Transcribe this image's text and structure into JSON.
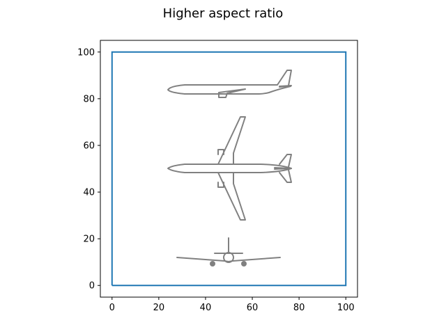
{
  "chart_data": {
    "type": "line",
    "title": "Higher aspect ratio",
    "xlabel": "",
    "ylabel": "",
    "xlim": [
      -5,
      105
    ],
    "ylim": [
      -5,
      105
    ],
    "x_ticks": [
      0,
      20,
      40,
      60,
      80,
      100
    ],
    "y_ticks": [
      0,
      20,
      40,
      60,
      80,
      100
    ],
    "x_tick_labels": [
      "0",
      "20",
      "40",
      "60",
      "80",
      "100"
    ],
    "y_tick_labels": [
      "0",
      "20",
      "40",
      "60",
      "80",
      "100"
    ],
    "grid": false,
    "series": [
      {
        "x": [
          0,
          100,
          100,
          0,
          0
        ],
        "y": [
          0,
          0,
          100,
          100,
          0
        ],
        "color": "#1f77b4"
      }
    ],
    "annotations": [
      {
        "depicts": "airplane side view",
        "x_center": 52,
        "y_center": 84
      },
      {
        "depicts": "airplane top view",
        "x_center": 50,
        "y_center": 50
      },
      {
        "depicts": "airplane front view",
        "x_center": 50,
        "y_center": 12
      }
    ]
  }
}
